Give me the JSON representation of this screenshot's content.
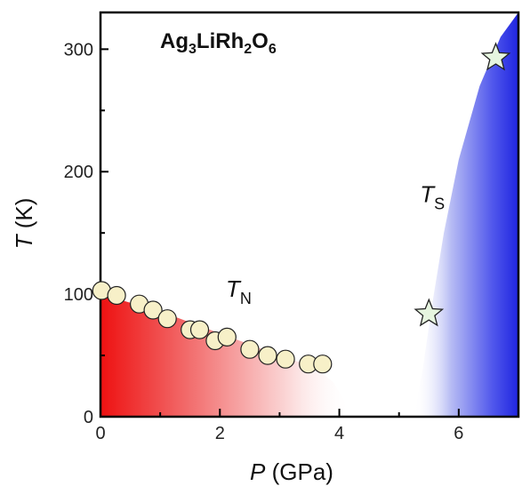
{
  "chart_data": {
    "type": "scatter",
    "title": "",
    "compound": {
      "parts": [
        {
          "t": "Ag",
          "sub": false
        },
        {
          "t": "3",
          "sub": true
        },
        {
          "t": "LiRh",
          "sub": false
        },
        {
          "t": "2",
          "sub": true
        },
        {
          "t": "O",
          "sub": false
        },
        {
          "t": "6",
          "sub": true
        }
      ]
    },
    "xlabel": {
      "italic": "P",
      "rest": " (GPa)"
    },
    "ylabel": {
      "italic": "T",
      "rest": " (K)"
    },
    "xlim": [
      0,
      7
    ],
    "ylim": [
      0,
      330
    ],
    "xticks": [
      0,
      2,
      4,
      6
    ],
    "yticks": [
      0,
      100,
      200,
      300
    ],
    "grid": false,
    "annotations": [
      {
        "main": "T",
        "sub": "N",
        "x": 2.1,
        "y": 98
      },
      {
        "main": "T",
        "sub": "S",
        "x": 5.35,
        "y": 175
      }
    ],
    "colors": {
      "tn_region": "#ee1111",
      "ts_region": "#2a30e6",
      "circle_fill": "#f7f0c8",
      "star_fill": "#e6f5df"
    },
    "series": [
      {
        "marker": "circle",
        "x": [
          0.02,
          0.27,
          0.65,
          0.88,
          1.12,
          1.5,
          1.66,
          1.92,
          2.12,
          2.5,
          2.8,
          3.1,
          3.48,
          3.72
        ],
        "y": [
          103,
          99,
          92,
          87,
          80,
          71,
          71,
          62,
          65,
          55,
          50,
          47,
          43,
          43
        ]
      },
      {
        "marker": "star",
        "x": [
          5.5,
          6.62
        ],
        "y": [
          84,
          293
        ]
      }
    ]
  }
}
